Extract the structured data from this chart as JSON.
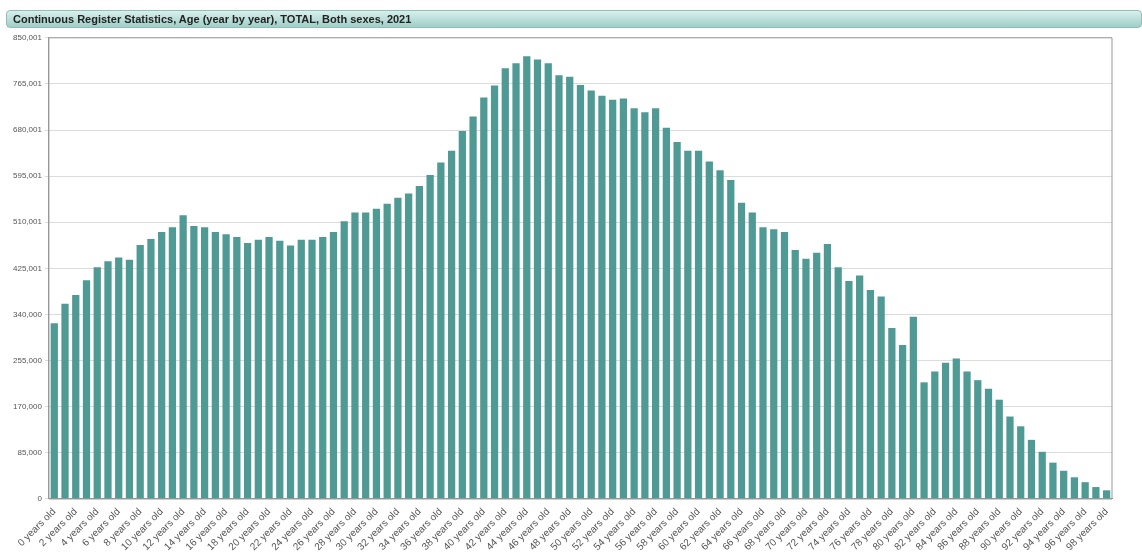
{
  "chart_data": {
    "type": "bar",
    "title": "Continuous Register Statistics, Age (year by year), TOTAL, Both sexes, 2021",
    "categories": [
      "0 years old",
      null,
      "2 years old",
      null,
      "4 years old",
      null,
      "6 years old",
      null,
      "8 years old",
      null,
      "10 years old",
      null,
      "12 years old",
      null,
      "14 years old",
      null,
      "16 years old",
      null,
      "18 years old",
      null,
      "20 years old",
      null,
      "22 years old",
      null,
      "24 years old",
      null,
      "26 years old",
      null,
      "28 years old",
      null,
      "30 years old",
      null,
      "32 years old",
      null,
      "34 years old",
      null,
      "36 years old",
      null,
      "38 years old",
      null,
      "40 years old",
      null,
      "42 years old",
      null,
      "44 years old",
      null,
      "46 years old",
      null,
      "48 years old",
      null,
      "50 years old",
      null,
      "52 years old",
      null,
      "54 years old",
      null,
      "56 years old",
      null,
      "58 years old",
      null,
      "60 years old",
      null,
      "62 years old",
      null,
      "64 years old",
      null,
      "66 years old",
      null,
      "68 years old",
      null,
      "70 years old",
      null,
      "72 years old",
      null,
      "74 years old",
      null,
      "76 years old",
      null,
      "78 years old",
      null,
      "80 years old",
      null,
      "82 years old",
      null,
      "84 years old",
      null,
      "86 years old",
      null,
      "88 years old",
      null,
      "90 years old",
      null,
      "92 years old",
      null,
      "94 years old",
      null,
      "96 years old",
      null,
      "98 years old"
    ],
    "values": [
      324000,
      360000,
      376000,
      403000,
      427000,
      438000,
      445000,
      441000,
      468000,
      479000,
      492000,
      501000,
      523000,
      503000,
      501000,
      492000,
      488000,
      483000,
      472000,
      478000,
      483000,
      476000,
      467000,
      478000,
      478000,
      483000,
      492000,
      512000,
      528000,
      528000,
      535000,
      544000,
      555000,
      563000,
      577000,
      597000,
      620000,
      642000,
      678000,
      705000,
      740000,
      762000,
      794000,
      803000,
      816000,
      810000,
      803000,
      781000,
      778000,
      763000,
      753000,
      743000,
      736000,
      738000,
      720000,
      713000,
      720000,
      684000,
      658000,
      642000,
      642000,
      622000,
      606000,
      588000,
      546000,
      528000,
      501000,
      497000,
      492000,
      459000,
      443000,
      454000,
      470000,
      427000,
      402000,
      412000,
      385000,
      373000,
      315000,
      284000,
      336000,
      215000,
      235000,
      251000,
      259000,
      235000,
      219000,
      203000,
      183000,
      152000,
      134000,
      109000,
      87000,
      67000,
      52000,
      40000,
      31000,
      22000,
      16000
    ],
    "color": "#4f9a94",
    "ylim": [
      0,
      850001
    ],
    "yticks": [
      0,
      {
        "value": 85000,
        "label": "85,000"
      },
      {
        "value": 170000,
        "label": "170,000"
      },
      {
        "value": 255000,
        "label": "255,000"
      },
      {
        "value": 340000,
        "label": "340,000"
      },
      {
        "value": 425001,
        "label": "425,001"
      },
      {
        "value": 510001,
        "label": "510,001"
      },
      {
        "value": 595001,
        "label": "595,001"
      },
      {
        "value": 680001,
        "label": "680,001"
      },
      {
        "value": 765001,
        "label": "765,001"
      },
      {
        "value": 850001,
        "label": "850,001"
      }
    ],
    "grid": "y"
  }
}
